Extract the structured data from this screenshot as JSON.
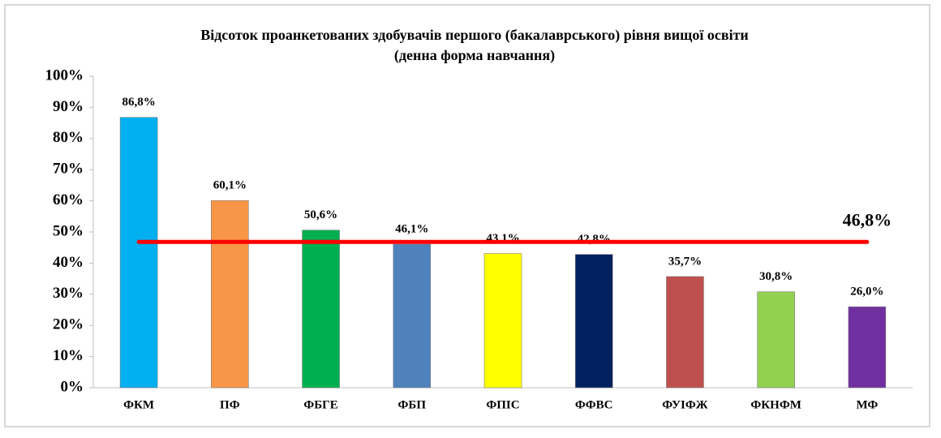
{
  "chart_data": {
    "type": "bar",
    "title": [
      "Відсоток проанкетованих здобувачів першого (бакалаврського) рівня вищої освіти",
      "(денна форма навчання)"
    ],
    "categories": [
      "ФКМ",
      "ПФ",
      "ФБГЕ",
      "ФБП",
      "ФПІС",
      "ФФВС",
      "ФУІФЖ",
      "ФКНФМ",
      "МФ"
    ],
    "values": [
      86.8,
      60.1,
      50.6,
      46.1,
      43.1,
      42.8,
      35.7,
      30.8,
      26.0
    ],
    "value_labels": [
      "86,8%",
      "60,1%",
      "50,6%",
      "46,1%",
      "43,1%",
      "42,8%",
      "35,7%",
      "30,8%",
      "26,0%"
    ],
    "colors": [
      "#00b0f0",
      "#f79646",
      "#00b050",
      "#4f81bd",
      "#ffff00",
      "#002060",
      "#c0504d",
      "#92d050",
      "#7030a0"
    ],
    "ylim": [
      0,
      100
    ],
    "yticks": [
      {
        "value": 0,
        "label": "0%"
      },
      {
        "value": 10,
        "label": "10%"
      },
      {
        "value": 20,
        "label": "20%"
      },
      {
        "value": 30,
        "label": "30%"
      },
      {
        "value": 40,
        "label": "40%"
      },
      {
        "value": 50,
        "label": "50%"
      },
      {
        "value": 60,
        "label": "60%"
      },
      {
        "value": 70,
        "label": "70%"
      },
      {
        "value": 80,
        "label": "80%"
      },
      {
        "value": 90,
        "label": "90%"
      },
      {
        "value": 100,
        "label": "100%"
      }
    ],
    "reference_line": {
      "value": 46.8,
      "label": "46,8%",
      "color": "#ff0000"
    }
  }
}
